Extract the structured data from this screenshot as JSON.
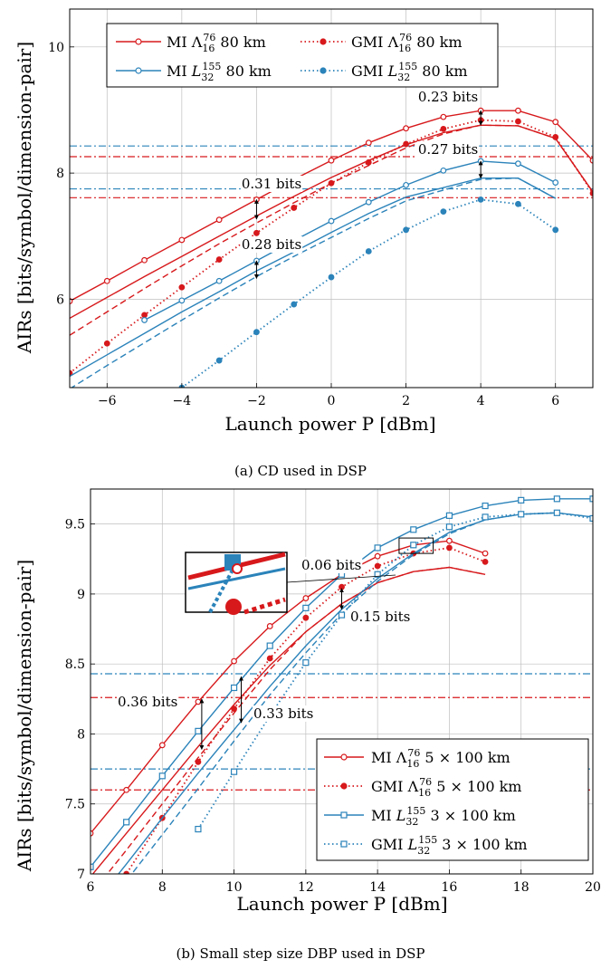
{
  "colors": {
    "red": "#d7191c",
    "blue": "#2b83ba",
    "grid": "#bfbfbf"
  },
  "chart_data": [
    {
      "type": "line",
      "caption": "(a) CD used in DSP",
      "xlabel": "Launch power P [dBm]",
      "ylabel": "AIRs [bits/symbol/dimension-pair]",
      "xlim": [
        -7,
        7
      ],
      "ylim": [
        4.6,
        10.6
      ],
      "xticks": [
        -6,
        -4,
        -2,
        0,
        2,
        4,
        6
      ],
      "yticks": [
        6,
        8,
        10
      ],
      "grid": true,
      "legend": {
        "placement": "top",
        "entries": [
          {
            "name": "MI Λ16^76 80 km",
            "color": "red",
            "style": "solid",
            "marker": "circle"
          },
          {
            "name": "GMI Λ16^76 80 km",
            "color": "red",
            "style": "dotted",
            "marker": "circle"
          },
          {
            "name": "MI L32^155 80 km",
            "color": "blue",
            "style": "solid",
            "marker": "circle"
          },
          {
            "name": "GMI L32^155 80 km",
            "color": "blue",
            "style": "dotted",
            "marker": "circle"
          }
        ]
      },
      "series": [
        {
          "name": "MI Λ16^76 80 km",
          "color": "red",
          "style": "solid",
          "marker": "circle",
          "x": [
            -7,
            -6,
            -5,
            -4,
            -3,
            -2,
            -1,
            0,
            1,
            2,
            3,
            4,
            5,
            6,
            7
          ],
          "y": [
            5.97,
            6.29,
            6.62,
            6.94,
            7.26,
            7.58,
            7.9,
            8.2,
            8.48,
            8.71,
            8.89,
            8.99,
            8.99,
            8.81,
            8.2
          ]
        },
        {
          "color": "red",
          "style": "solid",
          "marker": "none",
          "x": [
            -7,
            -6,
            -5,
            -4,
            -3,
            -2,
            -1,
            0,
            1,
            2,
            3,
            4,
            5,
            6,
            7
          ],
          "y": [
            5.7,
            6.03,
            6.36,
            6.68,
            7.0,
            7.32,
            7.63,
            7.93,
            8.2,
            8.45,
            8.64,
            8.76,
            8.75,
            8.55,
            7.7
          ]
        },
        {
          "color": "red",
          "style": "dashed",
          "marker": "none",
          "x": [
            -7,
            -6,
            -5,
            -4,
            -3,
            -2,
            -1,
            0,
            1,
            2,
            3,
            4,
            5,
            6,
            7
          ],
          "y": [
            5.43,
            5.8,
            6.17,
            6.53,
            6.88,
            7.21,
            7.53,
            7.84,
            8.12,
            8.4,
            8.62,
            8.76,
            8.75,
            8.55,
            7.7
          ]
        },
        {
          "name": "GMI Λ16^76 80 km",
          "color": "red",
          "style": "dotted",
          "marker": "circle",
          "x": [
            -7,
            -6,
            -5,
            -4,
            -3,
            -2,
            -1,
            0,
            1,
            2,
            3,
            4,
            5,
            6,
            7
          ],
          "y": [
            4.83,
            5.3,
            5.75,
            6.19,
            6.63,
            7.05,
            7.45,
            7.84,
            8.17,
            8.46,
            8.7,
            8.84,
            8.82,
            8.57,
            7.68
          ]
        },
        {
          "name": "MI L32^155 80 km",
          "color": "blue",
          "style": "solid",
          "marker": "circle",
          "x": [
            -5,
            -4,
            -3,
            -2,
            -1,
            0,
            1,
            2,
            3,
            4,
            5,
            6
          ],
          "y": [
            5.67,
            5.98,
            6.29,
            6.61,
            6.93,
            7.24,
            7.54,
            7.81,
            8.04,
            8.19,
            8.15,
            7.85
          ]
        },
        {
          "color": "blue",
          "style": "solid",
          "marker": "none",
          "x": [
            -7,
            -6,
            -5,
            -4,
            -3,
            -2,
            -1,
            0,
            1,
            2,
            3,
            4,
            5,
            6
          ],
          "y": [
            4.78,
            5.12,
            5.46,
            5.8,
            6.12,
            6.45,
            6.75,
            7.06,
            7.36,
            7.62,
            7.77,
            7.92,
            7.92,
            7.6
          ]
        },
        {
          "color": "blue",
          "style": "dashed",
          "marker": "none",
          "x": [
            -7,
            -6,
            -5,
            -4,
            -3,
            -2,
            -1,
            0,
            1,
            2,
            3,
            4,
            5,
            6
          ],
          "y": [
            4.58,
            4.95,
            5.31,
            5.67,
            6.02,
            6.36,
            6.68,
            6.98,
            7.28,
            7.56,
            7.73,
            7.9,
            7.92,
            7.6
          ]
        },
        {
          "name": "GMI L32^155 80 km",
          "color": "blue",
          "style": "dotted",
          "marker": "circle",
          "x": [
            -4,
            -3,
            -2,
            -1,
            0,
            1,
            2,
            3,
            4,
            5,
            6
          ],
          "y": [
            4.6,
            5.03,
            5.48,
            5.92,
            6.35,
            6.76,
            7.1,
            7.39,
            7.58,
            7.51,
            7.1
          ]
        }
      ],
      "hlines": [
        {
          "y": 8.43,
          "color": "blue"
        },
        {
          "y": 8.26,
          "color": "red"
        },
        {
          "y": 7.75,
          "color": "blue"
        },
        {
          "y": 7.61,
          "color": "red"
        }
      ],
      "annotations": [
        {
          "text": "0.23 bits",
          "x": 4,
          "y_from": 8.99,
          "y_to": 8.76
        },
        {
          "text": "0.27 bits",
          "x": 4,
          "y_from": 8.19,
          "y_to": 7.92
        },
        {
          "text": "0.31 bits",
          "x": -2,
          "y_from": 7.58,
          "y_to": 7.27
        },
        {
          "text": "0.28 bits",
          "x": -2,
          "y_from": 6.61,
          "y_to": 6.33
        }
      ]
    },
    {
      "type": "line",
      "caption": "(b) Small step size DBP used in DSP",
      "xlabel": "Launch power P [dBm]",
      "ylabel": "AIRs [bits/symbol/dimension-pair]",
      "xlim": [
        6,
        20
      ],
      "ylim": [
        7,
        9.75
      ],
      "xticks": [
        6,
        8,
        10,
        12,
        14,
        16,
        18,
        20
      ],
      "yticks": [
        7,
        7.5,
        8,
        8.5,
        9,
        9.5
      ],
      "grid": true,
      "legend": {
        "placement": "bottom-right",
        "entries": [
          {
            "name": "MI Λ16^76 5 × 100 km",
            "color": "red",
            "style": "solid",
            "marker": "circle"
          },
          {
            "name": "GMI Λ16^76 5 × 100 km",
            "color": "red",
            "style": "dotted",
            "marker": "circle"
          },
          {
            "name": "MI L32^155 3 × 100 km",
            "color": "blue",
            "style": "solid",
            "marker": "square"
          },
          {
            "name": "GMI L32^155 3 × 100 km",
            "color": "blue",
            "style": "dotted",
            "marker": "square"
          }
        ]
      },
      "series": [
        {
          "name": "MI Λ16^76 5 × 100 km",
          "color": "red",
          "style": "solid",
          "marker": "circle",
          "x": [
            6,
            7,
            8,
            9,
            10,
            11,
            12,
            13,
            14,
            15,
            16,
            17
          ],
          "y": [
            7.29,
            7.6,
            7.92,
            8.23,
            8.52,
            8.77,
            8.97,
            9.14,
            9.27,
            9.35,
            9.38,
            9.29
          ]
        },
        {
          "color": "red",
          "style": "solid",
          "marker": "none",
          "x": [
            6,
            7,
            8,
            9,
            10,
            11,
            12,
            13,
            14,
            15,
            16,
            17
          ],
          "y": [
            6.98,
            7.29,
            7.6,
            7.91,
            8.21,
            8.49,
            8.73,
            8.93,
            9.08,
            9.16,
            9.19,
            9.14
          ]
        },
        {
          "color": "red",
          "style": "dashed",
          "marker": "none",
          "x": [
            6,
            7,
            8,
            9,
            10,
            11,
            12,
            13,
            14,
            15,
            16,
            17
          ],
          "y": [
            6.85,
            7.17,
            7.5,
            7.83,
            8.15,
            8.46,
            8.73,
            8.93,
            9.08,
            9.16,
            9.19,
            9.14
          ]
        },
        {
          "name": "GMI Λ16^76 5 × 100 km",
          "color": "red",
          "style": "dotted",
          "marker": "circle",
          "x": [
            6,
            7,
            8,
            9,
            10,
            11,
            12,
            13,
            14,
            15,
            16,
            17
          ],
          "y": [
            6.62,
            7.0,
            7.4,
            7.8,
            8.18,
            8.54,
            8.83,
            9.05,
            9.2,
            9.29,
            9.33,
            9.23
          ]
        },
        {
          "name": "MI L32^155 3 × 100 km",
          "color": "blue",
          "style": "solid",
          "marker": "square",
          "x": [
            6,
            7,
            8,
            9,
            10,
            11,
            12,
            13,
            14,
            15,
            16,
            17,
            18,
            19,
            20
          ],
          "y": [
            7.05,
            7.37,
            7.7,
            8.02,
            8.33,
            8.63,
            8.9,
            9.14,
            9.33,
            9.46,
            9.56,
            9.63,
            9.67,
            9.68,
            9.68
          ]
        },
        {
          "color": "blue",
          "style": "solid",
          "marker": "none",
          "x": [
            6,
            7,
            8,
            9,
            10,
            11,
            12,
            13,
            14,
            15,
            16,
            17,
            18,
            19,
            20
          ],
          "y": [
            6.75,
            7.07,
            7.4,
            7.72,
            8.03,
            8.34,
            8.63,
            8.89,
            9.11,
            9.29,
            9.44,
            9.53,
            9.57,
            9.58,
            9.55
          ]
        },
        {
          "color": "blue",
          "style": "dashed",
          "marker": "none",
          "x": [
            6,
            7,
            8,
            9,
            10,
            11,
            12,
            13,
            14,
            15,
            16,
            17,
            18,
            19,
            20
          ],
          "y": [
            6.62,
            6.95,
            7.28,
            7.61,
            7.95,
            8.28,
            8.58,
            8.86,
            9.09,
            9.28,
            9.43,
            9.53,
            9.57,
            9.58,
            9.55
          ]
        },
        {
          "name": "GMI L32^155 3 × 100 km",
          "color": "blue",
          "style": "dotted",
          "marker": "square",
          "x": [
            9,
            10,
            11,
            12,
            13,
            14,
            15,
            16,
            17,
            18,
            19,
            20
          ],
          "y": [
            7.32,
            7.73,
            8.13,
            8.51,
            8.85,
            9.14,
            9.35,
            9.48,
            9.55,
            9.57,
            9.58,
            9.54
          ]
        }
      ],
      "hlines": [
        {
          "y": 8.43,
          "color": "blue"
        },
        {
          "y": 8.26,
          "color": "red"
        },
        {
          "y": 7.75,
          "color": "blue"
        },
        {
          "y": 7.6,
          "color": "red"
        }
      ],
      "annotations": [
        {
          "text": "0.36 bits",
          "x": 9.1,
          "y_from": 8.25,
          "y_to": 7.89
        },
        {
          "text": "0.33 bits",
          "x": 10.2,
          "y_from": 8.41,
          "y_to": 8.08
        },
        {
          "text": "0.15 bits",
          "x": 13,
          "y_from": 9.04,
          "y_to": 8.89
        },
        {
          "text": "0.06 bits",
          "x": 15,
          "note": "zoom box"
        }
      ]
    }
  ]
}
